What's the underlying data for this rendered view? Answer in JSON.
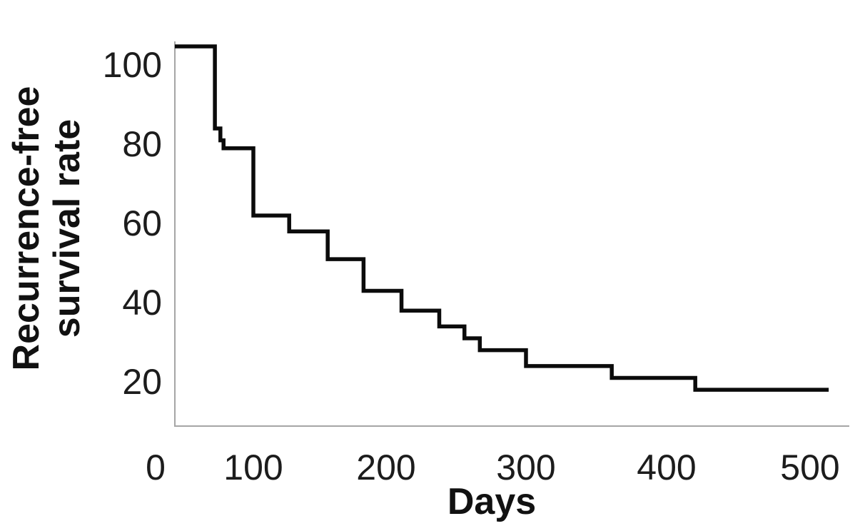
{
  "chart_data": {
    "type": "line",
    "subtype": "kaplan-meier-step",
    "title": "",
    "xlabel": "Days",
    "ylabel": "Recurrence-free survival rate",
    "ylabel_lines": [
      "Recurrence-free",
      "survival rate"
    ],
    "x_ticks": [
      0,
      100,
      200,
      300,
      400,
      500
    ],
    "y_ticks": [
      100,
      80,
      60,
      40,
      20
    ],
    "xlim": [
      0,
      515
    ],
    "ylim": [
      8,
      105
    ],
    "grid": false,
    "legend": null,
    "colors": {
      "curve": "#0b0b0b",
      "axis": "#a6a6a6",
      "text": "#1c1c1c"
    },
    "series": [
      {
        "name": "Recurrence-free survival",
        "units": "percent",
        "step_points": [
          [
            0,
            100
          ],
          [
            51,
            84
          ],
          [
            58,
            81
          ],
          [
            62,
            79
          ],
          [
            100,
            62
          ],
          [
            127,
            58
          ],
          [
            156,
            51
          ],
          [
            183,
            43
          ],
          [
            211,
            38
          ],
          [
            238,
            34
          ],
          [
            256,
            31
          ],
          [
            267,
            28
          ],
          [
            300,
            24
          ],
          [
            361,
            21
          ],
          [
            420,
            18
          ]
        ],
        "end_day": 513,
        "final_value": 18
      }
    ]
  }
}
